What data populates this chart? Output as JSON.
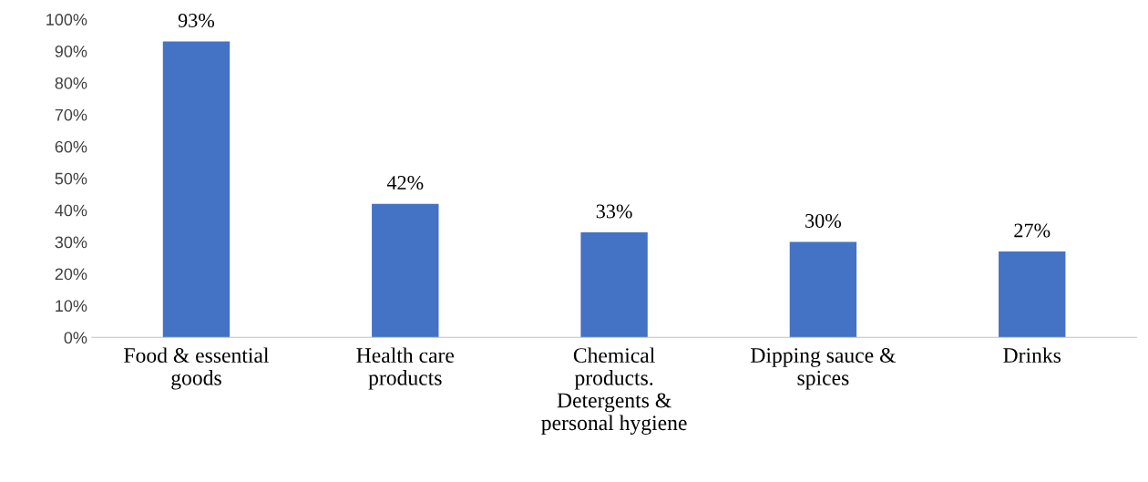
{
  "chart_data": {
    "type": "bar",
    "categories": [
      "Food & essential\ngoods",
      "Health care\nproducts",
      "Chemical\nproducts.\nDetergents &\npersonal hygiene",
      "Dipping sauce &\nspices",
      "Drinks"
    ],
    "values": [
      93,
      42,
      33,
      30,
      27
    ],
    "value_labels": [
      "93%",
      "42%",
      "33%",
      "30%",
      "27%"
    ],
    "color": "#4472c4",
    "ylim": [
      0,
      100
    ],
    "yticks": [
      {
        "value": 0,
        "label": "0%"
      },
      {
        "value": 10,
        "label": "10%"
      },
      {
        "value": 20,
        "label": "20%"
      },
      {
        "value": 30,
        "label": "30%"
      },
      {
        "value": 40,
        "label": "40%"
      },
      {
        "value": 50,
        "label": "50%"
      },
      {
        "value": 60,
        "label": "60%"
      },
      {
        "value": 70,
        "label": "70%"
      },
      {
        "value": 80,
        "label": "80%"
      },
      {
        "value": 90,
        "label": "90%"
      },
      {
        "value": 100,
        "label": "100%"
      }
    ],
    "grid": false,
    "legend": false
  }
}
